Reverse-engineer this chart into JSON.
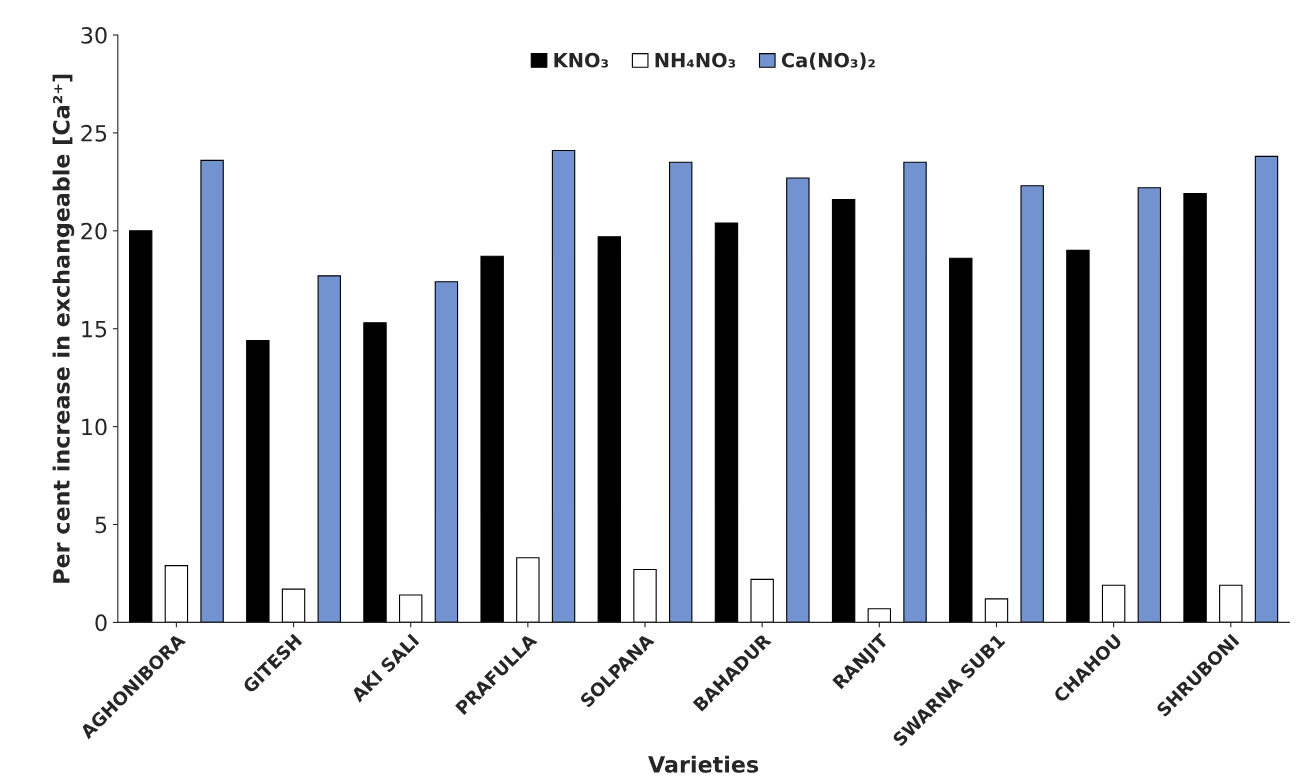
{
  "chart_data": {
    "type": "bar",
    "xlabel": "Varieties",
    "ylabel": "Per cent increase in exchangeable [Ca²⁺]",
    "categories": [
      "AGHONIBORA",
      "GITESH",
      "AKI SALI",
      "PRAFULLA",
      "SOLPANA",
      "BAHADUR",
      "RANJIT",
      "SWARNA SUB1",
      "CHAHOU",
      "SHRUBONI"
    ],
    "series": [
      {
        "name": "KNO₃",
        "color": "#000000",
        "values": [
          20.0,
          14.4,
          15.3,
          18.7,
          19.7,
          20.4,
          21.6,
          18.6,
          19.0,
          21.9
        ]
      },
      {
        "name": "NH₄NO₃",
        "color": "#ffffff",
        "values": [
          2.9,
          1.7,
          1.4,
          3.3,
          2.7,
          2.2,
          0.7,
          1.2,
          1.9,
          1.9
        ]
      },
      {
        "name": "Ca(NO₃)₂",
        "color": "#7393d0",
        "values": [
          23.6,
          17.7,
          17.4,
          24.1,
          23.5,
          22.7,
          23.5,
          22.3,
          22.2,
          23.8
        ]
      }
    ],
    "ylim": [
      0,
      30
    ],
    "yticks": [
      0,
      5,
      10,
      15,
      20,
      25,
      30
    ],
    "grid": false,
    "legend": "top"
  }
}
